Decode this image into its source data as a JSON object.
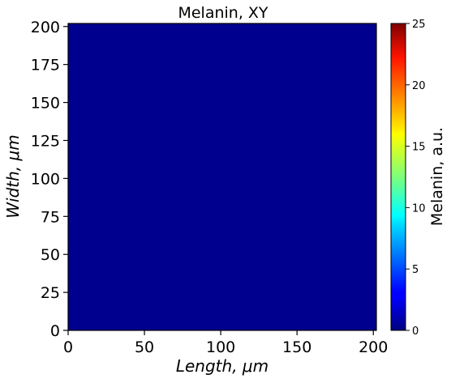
{
  "chart_data": {
    "type": "heatmap",
    "title": "Melanin, XY",
    "xlabel": "Length, μm",
    "ylabel": "Width, μm",
    "xlim": [
      0,
      202
    ],
    "ylim": [
      0,
      202
    ],
    "x_ticks": [
      0,
      50,
      100,
      150,
      200
    ],
    "y_ticks": [
      0,
      25,
      50,
      75,
      100,
      125,
      150,
      175,
      200
    ],
    "field_value_estimate": 0.3,
    "field_color": "#00008f",
    "colorbar": {
      "label": "Melanin, a.u.",
      "colormap": "jet",
      "range": [
        0,
        25
      ],
      "ticks": [
        0,
        5,
        10,
        15,
        20,
        25
      ]
    }
  }
}
